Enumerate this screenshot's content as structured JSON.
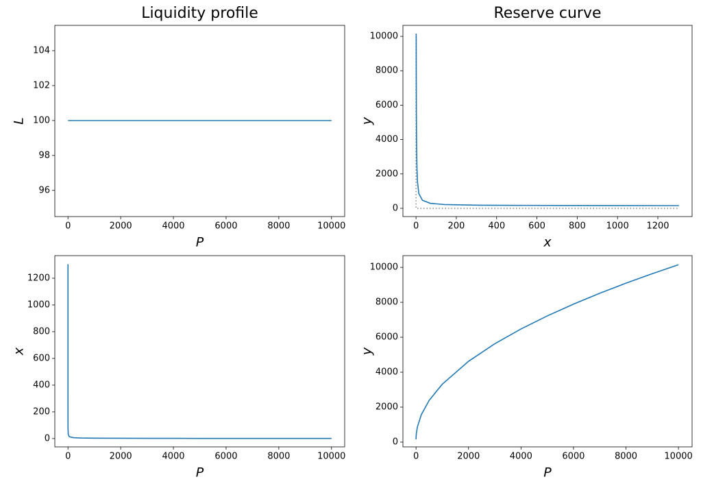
{
  "chart_data": [
    {
      "type": "line",
      "title": "Liquidity profile",
      "xlabel": "P",
      "ylabel": "L",
      "x": [
        0.00587,
        0.1,
        2,
        50,
        500,
        1000,
        2000,
        3000,
        4000,
        5000,
        6000,
        7000,
        8000,
        9000,
        10000
      ],
      "series": [
        {
          "color": "#1f77b4",
          "values": [
            100,
            100,
            100,
            100,
            100,
            100,
            100,
            100,
            100,
            100,
            100,
            100,
            100,
            100,
            100
          ]
        }
      ],
      "xlim": [
        -500,
        10500
      ],
      "ylim": [
        94.5,
        105.45
      ],
      "xticks": [
        0,
        2000,
        4000,
        6000,
        8000,
        10000
      ],
      "yticks": [
        96,
        98,
        100,
        102,
        104
      ]
    },
    {
      "type": "line",
      "title": "Reserve curve",
      "xlabel": "x",
      "ylabel": "y",
      "x": [
        1305,
        707,
        316,
        141,
        71,
        32,
        14,
        7,
        4.5,
        3.2,
        2.2,
        1.8,
        1.6,
        1.4,
        1.3,
        1.2,
        1.1,
        1.05,
        1.0
      ],
      "series": [
        {
          "color": "#1f77b4",
          "values": [
            158,
            164,
            182,
            221,
            291,
            466,
            857,
            1564,
            2386,
            3312,
            4622,
            5627,
            6475,
            7221,
            7896,
            8517,
            9094,
            9637,
            10150
          ]
        }
      ],
      "lines": [
        {
          "color": "#808080",
          "style": "dotted",
          "x": [
            0,
            0,
            1305
          ],
          "y": [
            10150,
            0,
            0
          ]
        }
      ],
      "xlim": [
        -65,
        1370
      ],
      "ylim": [
        -480,
        10640
      ],
      "xticks": [
        0,
        200,
        400,
        600,
        800,
        1000,
        1200
      ],
      "yticks": [
        0,
        2000,
        4000,
        6000,
        8000,
        10000
      ]
    },
    {
      "type": "line",
      "xlabel": "P",
      "ylabel": "x",
      "x": [
        0.00587,
        0.02,
        0.1,
        0.5,
        2,
        10,
        50,
        200,
        500,
        1000,
        2000,
        3000,
        4000,
        5000,
        6000,
        7000,
        8000,
        9000,
        10000
      ],
      "series": [
        {
          "color": "#1f77b4",
          "values": [
            1305,
            707,
            316,
            141,
            71,
            32,
            14,
            7,
            4.5,
            3.2,
            2.2,
            1.8,
            1.6,
            1.4,
            1.3,
            1.2,
            1.1,
            1.05,
            1.0
          ]
        }
      ],
      "xlim": [
        -500,
        10500
      ],
      "ylim": [
        -62,
        1369
      ],
      "xticks": [
        0,
        2000,
        4000,
        6000,
        8000,
        10000
      ],
      "yticks": [
        0,
        200,
        400,
        600,
        800,
        1000,
        1200
      ]
    },
    {
      "type": "line",
      "xlabel": "P",
      "ylabel": "y",
      "x": [
        0.00587,
        0.02,
        0.1,
        0.5,
        2,
        10,
        50,
        200,
        500,
        1000,
        2000,
        3000,
        4000,
        5000,
        6000,
        7000,
        8000,
        9000,
        10000
      ],
      "series": [
        {
          "color": "#1f77b4",
          "values": [
            158,
            164,
            182,
            221,
            291,
            466,
            857,
            1564,
            2386,
            3312,
            4622,
            5627,
            6475,
            7221,
            7896,
            8517,
            9094,
            9637,
            10150
          ]
        }
      ],
      "xlim": [
        -500,
        10520
      ],
      "ylim": [
        -275,
        10670
      ],
      "xticks": [
        0,
        2000,
        4000,
        6000,
        8000,
        10000
      ],
      "yticks": [
        0,
        2000,
        4000,
        6000,
        8000,
        10000
      ]
    }
  ]
}
